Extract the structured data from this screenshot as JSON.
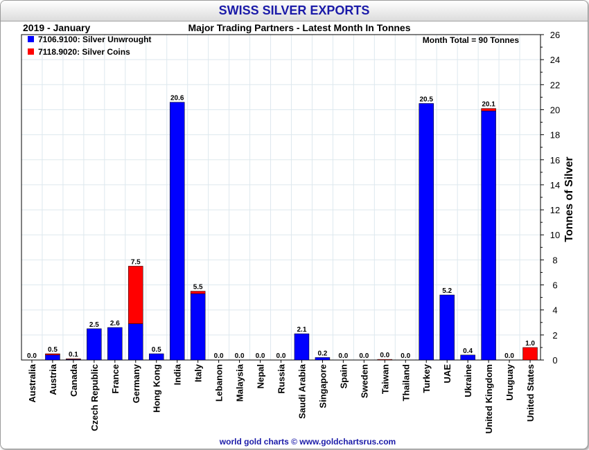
{
  "title": "SWISS SILVER EXPORTS",
  "period": "2019 - January",
  "subtitle": "Major Trading Partners - Latest Month In Tonnes",
  "annotation": "Month Total = 90 Tonnes",
  "footer": "world gold charts © www.goldchartsrus.com",
  "chart_data": {
    "type": "bar",
    "stacked": true,
    "ylabel": "Tonnes of Silver",
    "ylim": [
      0,
      26
    ],
    "yticks": [
      0,
      2,
      4,
      6,
      8,
      10,
      12,
      14,
      16,
      18,
      20,
      22,
      24,
      26
    ],
    "y_axis_side": "right",
    "grid": true,
    "legend_position": "top-left",
    "categories": [
      "Australia",
      "Austria",
      "Canada",
      "Czech Republic",
      "France",
      "Germany",
      "Hong Kong",
      "India",
      "Italy",
      "Lebanon",
      "Malaysia",
      "Nepal",
      "Russia",
      "Saudi Arabia",
      "Singapore",
      "Spain",
      "Sweden",
      "Taiwan",
      "Thailand",
      "Turkey",
      "UAE",
      "Ukraine",
      "United Kingdom",
      "Uruguay",
      "United States"
    ],
    "series": [
      {
        "name": "7106.9100: Silver Unwrought",
        "color": "#0000ff",
        "values": [
          0,
          0.4,
          0.05,
          2.5,
          2.6,
          2.9,
          0.5,
          20.6,
          5.3,
          0,
          0,
          0,
          0,
          2.1,
          0.2,
          0,
          0,
          0,
          0,
          20.5,
          5.2,
          0.4,
          19.9,
          0,
          0
        ]
      },
      {
        "name": "7118.9020: Silver Coins",
        "color": "#ff0000",
        "values": [
          0,
          0.1,
          0.05,
          0,
          0,
          4.6,
          0,
          0,
          0.2,
          0,
          0,
          0,
          0,
          0,
          0,
          0,
          0,
          0.05,
          0,
          0,
          0,
          0,
          0.2,
          0,
          1.0
        ]
      }
    ],
    "data_labels": [
      "0.0",
      "0.5",
      "0.1",
      "2.5",
      "2.6",
      "7.5",
      "0.5",
      "20.6",
      "5.5",
      "0.0",
      "0.0",
      "0.0",
      "0.0",
      "2.1",
      "0.2",
      "0.0",
      "0.0",
      "0.0",
      "0.0",
      "20.5",
      "5.2",
      "0.4",
      "20.1",
      "0.0",
      "1.0"
    ]
  }
}
